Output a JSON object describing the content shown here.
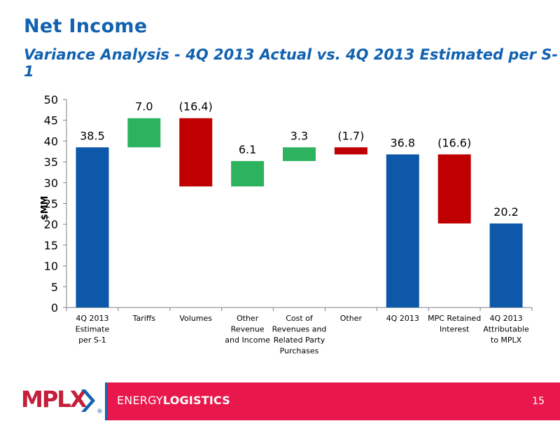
{
  "header": {
    "title": "Net Income",
    "subtitle": "Variance Analysis - 4Q 2013 Actual vs. 4Q 2013 Estimated per S-1"
  },
  "colors": {
    "total": "#0d58a8",
    "increase": "#2db35f",
    "decrease": "#c00000",
    "title": "#1262b0",
    "footer_band": "#e8184c"
  },
  "chart_data": {
    "type": "bar",
    "subtype": "waterfall",
    "ylabel": "$MM",
    "xlabel": "",
    "ylim": [
      0,
      50
    ],
    "yticks": [
      0,
      5,
      10,
      15,
      20,
      25,
      30,
      35,
      40,
      45,
      50
    ],
    "grid": false,
    "bars": [
      {
        "label": [
          "4Q 2013",
          "Estimate",
          "per S-1"
        ],
        "kind": "total",
        "start": 0,
        "end": 38.5,
        "data_label": "38.5"
      },
      {
        "label": [
          "Tariffs"
        ],
        "kind": "increase",
        "start": 38.5,
        "end": 45.5,
        "data_label": "7.0"
      },
      {
        "label": [
          "Volumes"
        ],
        "kind": "decrease",
        "start": 45.5,
        "end": 29.1,
        "data_label": "(16.4)"
      },
      {
        "label": [
          "Other",
          "Revenue",
          "and Income"
        ],
        "kind": "increase",
        "start": 29.1,
        "end": 35.2,
        "data_label": "6.1"
      },
      {
        "label": [
          "Cost of",
          "Revenues and",
          "Related Party",
          "Purchases"
        ],
        "kind": "increase",
        "start": 35.2,
        "end": 38.5,
        "data_label": "3.3"
      },
      {
        "label": [
          "Other"
        ],
        "kind": "decrease",
        "start": 38.5,
        "end": 36.8,
        "data_label": "(1.7)"
      },
      {
        "label": [
          "4Q 2013"
        ],
        "kind": "total",
        "start": 0,
        "end": 36.8,
        "data_label": "36.8"
      },
      {
        "label": [
          "MPC Retained",
          "Interest"
        ],
        "kind": "decrease",
        "start": 36.8,
        "end": 20.2,
        "data_label": "(16.6)"
      },
      {
        "label": [
          "4Q 2013",
          "Attributable",
          "to MPLX"
        ],
        "kind": "total",
        "start": 0,
        "end": 20.2,
        "data_label": "20.2"
      }
    ]
  },
  "footer": {
    "logo_text": "MPLX",
    "brand_light": "ENERGY",
    "brand_bold": "LOGISTICS",
    "page_number": "15"
  }
}
